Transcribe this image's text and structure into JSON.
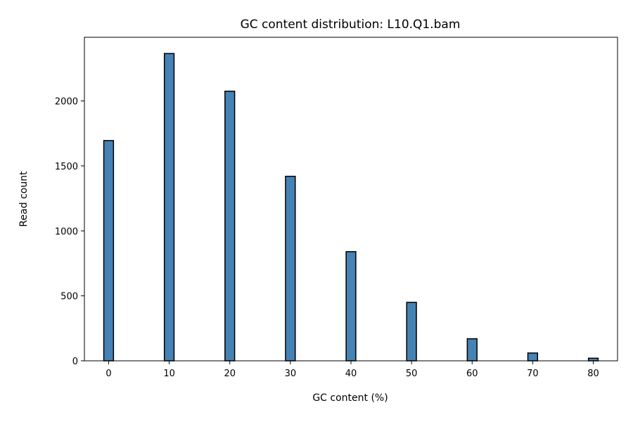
{
  "chart_data": {
    "type": "bar",
    "title": "GC content distribution: L10.Q1.bam",
    "xlabel": "GC content (%)",
    "ylabel": "Read count",
    "x": [
      0,
      10,
      20,
      30,
      40,
      50,
      60,
      70,
      80
    ],
    "values": [
      1695,
      2365,
      2075,
      1420,
      840,
      450,
      170,
      60,
      20
    ],
    "xlim": [
      -4,
      84
    ],
    "ylim": [
      0,
      2490
    ],
    "xticks": [
      0,
      10,
      20,
      30,
      40,
      50,
      60,
      70,
      80
    ],
    "yticks": [
      0,
      500,
      1000,
      1500,
      2000
    ],
    "bar_color": "#4682b4",
    "edge_color": "#000000",
    "grid": false,
    "legend": false
  }
}
